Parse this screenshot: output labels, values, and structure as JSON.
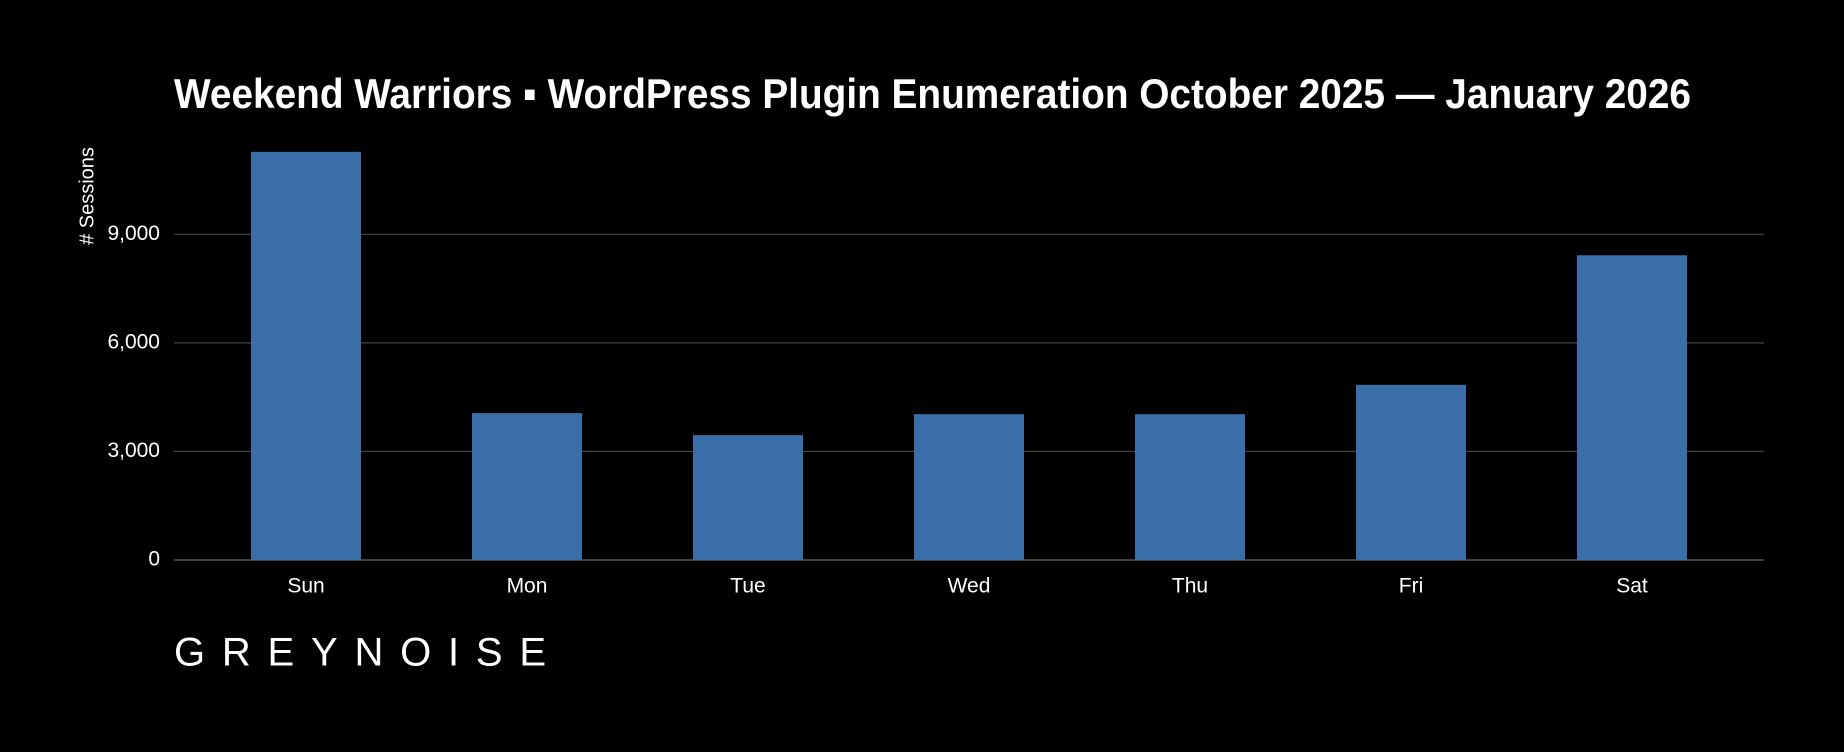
{
  "chart_data": {
    "type": "bar",
    "title": "Weekend Warriors ▪ WordPress Plugin Enumeration October 2025 — January 2026",
    "y_label": "# Sessions",
    "categories": [
      "Sun",
      "Mon",
      "Tue",
      "Wed",
      "Thu",
      "Fri",
      "Sat"
    ],
    "values": [
      11280,
      4060,
      3450,
      4030,
      4030,
      4840,
      8420
    ],
    "color": "#3a6ea8",
    "ylim": [
      0,
      11800
    ],
    "yticks": [
      0,
      {
        "value": 3000,
        "label": "3,000"
      },
      {
        "value": 6000,
        "label": "6,000"
      },
      {
        "value": 9000,
        "label": "9,000"
      }
    ],
    "grid": true,
    "logo": "GREYNOISE"
  }
}
